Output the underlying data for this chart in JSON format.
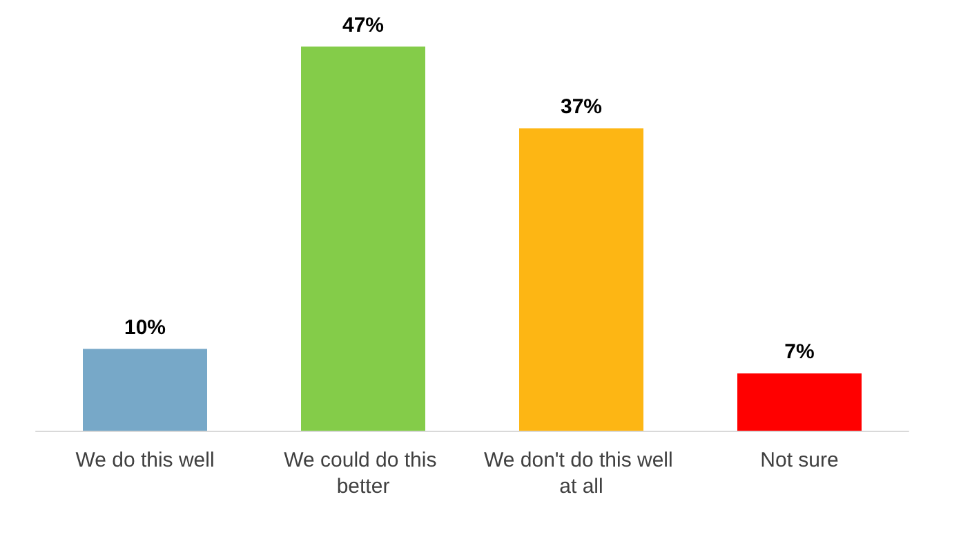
{
  "chart_data": {
    "type": "bar",
    "categories": [
      "We do this well",
      "We could do this better",
      "We don't do this well at all",
      "Not sure"
    ],
    "values": [
      10,
      47,
      37,
      7
    ],
    "colors": [
      "#77a8c8",
      "#84cc49",
      "#fdb614",
      "#ff0000"
    ],
    "value_labels": [
      "10%",
      "47%",
      "37%",
      "7%"
    ]
  }
}
